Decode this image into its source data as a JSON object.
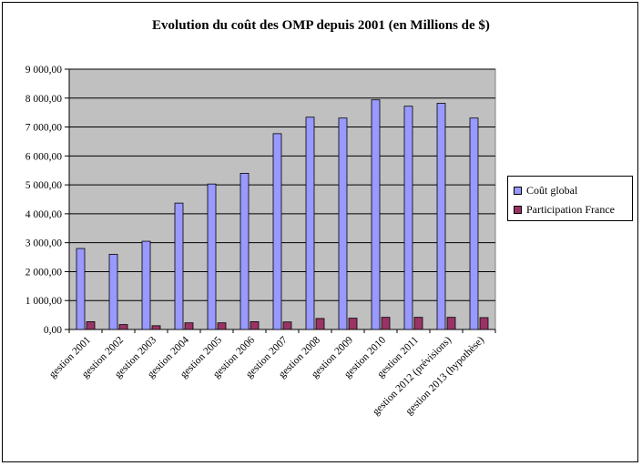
{
  "chart_data": {
    "type": "bar",
    "title": "Evolution du coût des OMP depuis 2001 (en Millions de $)",
    "xlabel": "",
    "ylabel": "",
    "ylim": [
      0,
      9000
    ],
    "yticks": [
      0,
      1000,
      2000,
      3000,
      4000,
      5000,
      6000,
      7000,
      8000,
      9000
    ],
    "ytick_labels": [
      "0,00",
      "1 000,00",
      "2 000,00",
      "3 000,00",
      "4 000,00",
      "5 000,00",
      "6 000,00",
      "7 000,00",
      "8 000,00",
      "9 000,00"
    ],
    "grid": true,
    "legend_position": "right",
    "categories": [
      "gestion 2001",
      "gestion 2002",
      "gestion 2003",
      "gestion 2004",
      "gestion 2005",
      "gestion 2006",
      "gestion 2007",
      "gestion 2008",
      "gestion 2009",
      "gestion 2010",
      "gestion 2011",
      "gestion 2012 (prévisions)",
      "gestion 2013 (hypothèse)"
    ],
    "series": [
      {
        "name": "Coût global",
        "color": "#9999ff",
        "values": [
          2800,
          2600,
          3050,
          4370,
          5030,
          5400,
          6770,
          7340,
          7310,
          7940,
          7720,
          7820,
          7310
        ]
      },
      {
        "name": "Participation France",
        "color": "#993366",
        "values": [
          270,
          170,
          130,
          230,
          230,
          270,
          260,
          380,
          390,
          420,
          420,
          420,
          410
        ]
      }
    ]
  }
}
